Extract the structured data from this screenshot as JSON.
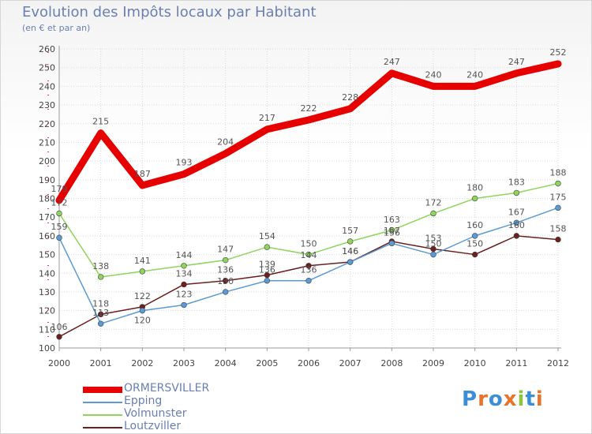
{
  "header": {
    "title": "Evolution des Impôts locaux par Habitant",
    "subtitle": "(en € et par an)"
  },
  "logo": {
    "text": "Proxiti"
  },
  "chart_data": {
    "type": "line",
    "title": "Evolution des Impôts locaux par Habitant",
    "subtitle": "(en € et par an)",
    "xlabel": "",
    "ylabel": "",
    "categories": [
      "2000",
      "2001",
      "2002",
      "2003",
      "2004",
      "2005",
      "2006",
      "2007",
      "2008",
      "2009",
      "2010",
      "2011",
      "2012"
    ],
    "ylim": [
      100,
      260
    ],
    "yticks": [
      100,
      110,
      120,
      130,
      140,
      150,
      160,
      170,
      180,
      190,
      200,
      210,
      220,
      230,
      240,
      250,
      260
    ],
    "grid": true,
    "legend_position": "bottom-left",
    "series": [
      {
        "name": "ORMERSVILLER",
        "color": "#e60000",
        "values": [
          179,
          215,
          187,
          193,
          204,
          217,
          222,
          228,
          247,
          240,
          240,
          247,
          252
        ],
        "labels": [
          "179",
          "215",
          "187",
          "193",
          "204",
          "217",
          "222",
          "228",
          "247",
          "240",
          "240",
          "247",
          "252"
        ]
      },
      {
        "name": "Epping",
        "color": "#5b9bd5",
        "values": [
          159,
          113,
          120,
          123,
          130,
          136,
          136,
          146,
          156,
          150,
          160,
          167,
          175
        ],
        "labels": [
          "159",
          "113",
          "120",
          "123",
          "130",
          "136",
          "136",
          "146",
          "156",
          "150",
          "160",
          "167",
          "175"
        ]
      },
      {
        "name": "Volmunster",
        "color": "#8fd45c",
        "values": [
          172,
          138,
          141,
          144,
          147,
          154,
          150,
          157,
          163,
          172,
          180,
          183,
          188
        ],
        "labels": [
          "172",
          "138",
          "141",
          "144",
          "147",
          "154",
          "150",
          "157",
          "163",
          "172",
          "180",
          "183",
          "188"
        ]
      },
      {
        "name": "Loutzviller",
        "color": "#6b1f1f",
        "values": [
          106,
          118,
          122,
          134,
          136,
          139,
          144,
          146,
          157,
          153,
          150,
          160,
          158
        ],
        "labels": [
          "106",
          "118",
          "122",
          "134",
          "136",
          "139",
          "144",
          "146",
          "157",
          "153",
          "150",
          "160",
          "158"
        ]
      }
    ]
  }
}
